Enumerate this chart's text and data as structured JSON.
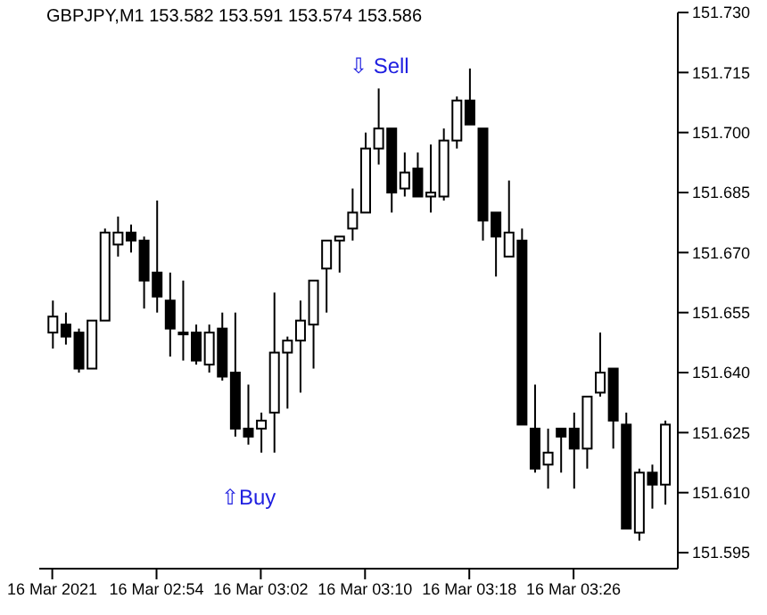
{
  "chart_data": {
    "type": "candlestick",
    "title": "GBPJPY,M1  153.582 153.591 153.574 153.586",
    "x": [
      "2021-03-16T02:46",
      "2021-03-16T02:47",
      "2021-03-16T02:48",
      "2021-03-16T02:49",
      "2021-03-16T02:50",
      "2021-03-16T02:51",
      "2021-03-16T02:52",
      "2021-03-16T02:53",
      "2021-03-16T02:54",
      "2021-03-16T02:55",
      "2021-03-16T02:56",
      "2021-03-16T02:57",
      "2021-03-16T02:58",
      "2021-03-16T02:59",
      "2021-03-16T03:00",
      "2021-03-16T03:01",
      "2021-03-16T03:02",
      "2021-03-16T03:03",
      "2021-03-16T03:04",
      "2021-03-16T03:05",
      "2021-03-16T03:06",
      "2021-03-16T03:07",
      "2021-03-16T03:08",
      "2021-03-16T03:09",
      "2021-03-16T03:10",
      "2021-03-16T03:11",
      "2021-03-16T03:12",
      "2021-03-16T03:13",
      "2021-03-16T03:14",
      "2021-03-16T03:15",
      "2021-03-16T03:16",
      "2021-03-16T03:17",
      "2021-03-16T03:18",
      "2021-03-16T03:19",
      "2021-03-16T03:20",
      "2021-03-16T03:21",
      "2021-03-16T03:22",
      "2021-03-16T03:23",
      "2021-03-16T03:24",
      "2021-03-16T03:25",
      "2021-03-16T03:26",
      "2021-03-16T03:27",
      "2021-03-16T03:28",
      "2021-03-16T03:29",
      "2021-03-16T03:30",
      "2021-03-16T03:31",
      "2021-03-16T03:32",
      "2021-03-16T03:33"
    ],
    "ohlc": [
      [
        151.65,
        151.658,
        151.646,
        151.654
      ],
      [
        151.652,
        151.655,
        151.647,
        151.649
      ],
      [
        151.65,
        151.651,
        151.64,
        151.641
      ],
      [
        151.641,
        151.653,
        151.641,
        151.653
      ],
      [
        151.653,
        151.676,
        151.653,
        151.675
      ],
      [
        151.672,
        151.679,
        151.669,
        151.675
      ],
      [
        151.675,
        151.677,
        151.67,
        151.673
      ],
      [
        151.673,
        151.674,
        151.656,
        151.663
      ],
      [
        151.665,
        151.683,
        151.655,
        151.659
      ],
      [
        151.658,
        151.665,
        151.644,
        151.651
      ],
      [
        151.65,
        151.663,
        151.643,
        151.65
      ],
      [
        151.65,
        151.652,
        151.642,
        151.643
      ],
      [
        151.642,
        151.652,
        151.64,
        151.65
      ],
      [
        151.651,
        151.655,
        151.638,
        151.639
      ],
      [
        151.64,
        151.655,
        151.624,
        151.626
      ],
      [
        151.626,
        151.637,
        151.622,
        151.624
      ],
      [
        151.626,
        151.63,
        151.62,
        151.628
      ],
      [
        151.63,
        151.66,
        151.62,
        151.645
      ],
      [
        151.645,
        151.649,
        151.631,
        151.648
      ],
      [
        151.648,
        151.658,
        151.635,
        151.653
      ],
      [
        151.652,
        151.663,
        151.641,
        151.663
      ],
      [
        151.666,
        151.673,
        151.655,
        151.673
      ],
      [
        151.673,
        151.674,
        151.665,
        151.674
      ],
      [
        151.676,
        151.686,
        151.673,
        151.68
      ],
      [
        151.68,
        151.7,
        151.68,
        151.696
      ],
      [
        151.696,
        151.711,
        151.692,
        151.701
      ],
      [
        151.701,
        151.701,
        151.68,
        151.685
      ],
      [
        151.686,
        151.695,
        151.684,
        151.69
      ],
      [
        151.691,
        151.695,
        151.684,
        151.684
      ],
      [
        151.684,
        151.697,
        151.68,
        151.685
      ],
      [
        151.684,
        151.701,
        151.683,
        151.698
      ],
      [
        151.698,
        151.709,
        151.696,
        151.708
      ],
      [
        151.708,
        151.716,
        151.702,
        151.702
      ],
      [
        151.701,
        151.701,
        151.673,
        151.678
      ],
      [
        151.68,
        151.68,
        151.664,
        151.674
      ],
      [
        151.669,
        151.688,
        151.669,
        151.675
      ],
      [
        151.673,
        151.676,
        151.627,
        151.627
      ],
      [
        151.626,
        151.637,
        151.615,
        151.616
      ],
      [
        151.617,
        151.626,
        151.611,
        151.62
      ],
      [
        151.626,
        151.626,
        151.615,
        151.624
      ],
      [
        151.626,
        151.63,
        151.611,
        151.621
      ],
      [
        151.621,
        151.634,
        151.616,
        151.634
      ],
      [
        151.635,
        151.65,
        151.634,
        151.64
      ],
      [
        151.641,
        151.641,
        151.621,
        151.628
      ],
      [
        151.627,
        151.63,
        151.601,
        151.601
      ],
      [
        151.6,
        151.616,
        151.598,
        151.615
      ],
      [
        151.615,
        151.617,
        151.606,
        151.612
      ],
      [
        151.612,
        151.628,
        151.607,
        151.627
      ]
    ],
    "xlim": [
      "2021-03-16T02:45",
      "2021-03-16T03:34"
    ],
    "xticks": [
      {
        "value": "2021-03-16T02:46",
        "label": "16 Mar 2021"
      },
      {
        "value": "2021-03-16T02:54",
        "label": "16 Mar 02:54"
      },
      {
        "value": "2021-03-16T03:02",
        "label": "16 Mar 03:02"
      },
      {
        "value": "2021-03-16T03:10",
        "label": "16 Mar 03:10"
      },
      {
        "value": "2021-03-16T03:18",
        "label": "16 Mar 03:18"
      },
      {
        "value": "2021-03-16T03:26",
        "label": "16 Mar 03:26"
      }
    ],
    "ylim": [
      151.591,
      151.73
    ],
    "yticks": [
      {
        "value": 151.595,
        "label": "151.595"
      },
      {
        "value": 151.61,
        "label": "151.610"
      },
      {
        "value": 151.625,
        "label": "151.625"
      },
      {
        "value": 151.64,
        "label": "151.640"
      },
      {
        "value": 151.655,
        "label": "151.655"
      },
      {
        "value": 151.67,
        "label": "151.670"
      },
      {
        "value": 151.685,
        "label": "151.685"
      },
      {
        "value": 151.7,
        "label": "151.700"
      },
      {
        "value": 151.715,
        "label": "151.715"
      },
      {
        "value": 151.73,
        "label": "151.730"
      }
    ],
    "annotations": [
      "⇩ Sell",
      "⇧Buy"
    ],
    "grid": false,
    "legend": false
  }
}
